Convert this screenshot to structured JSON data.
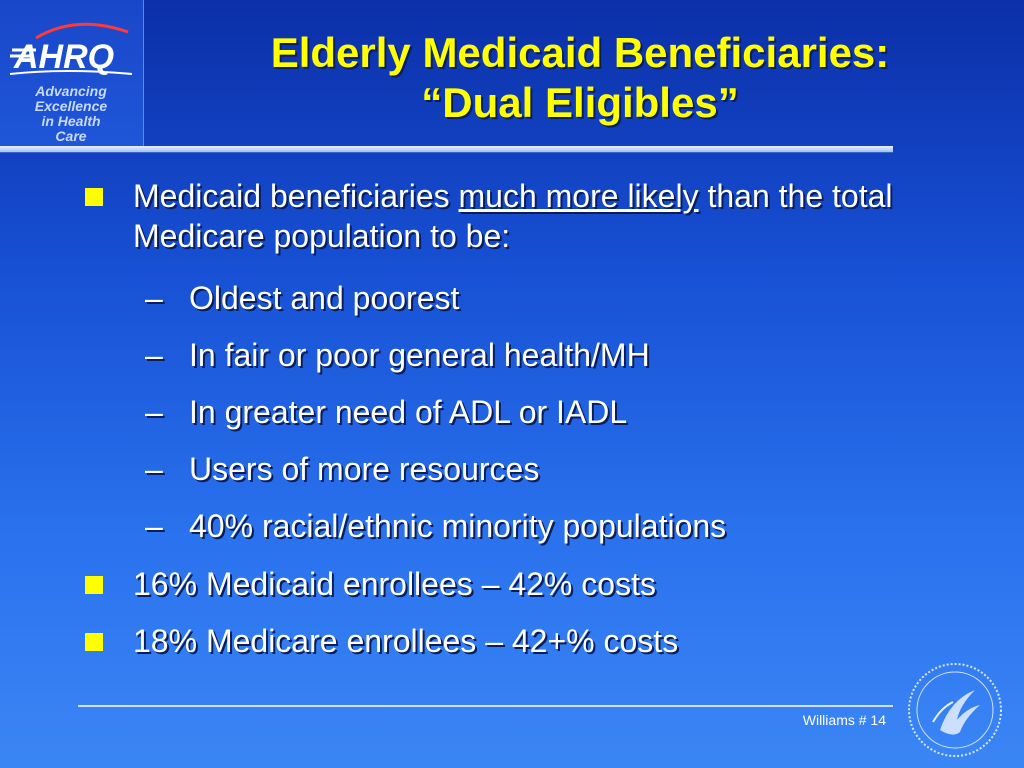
{
  "logo": {
    "text": "AHRQ",
    "tagline": [
      "Advancing",
      "Excellence",
      "in Health",
      "Care"
    ]
  },
  "title": {
    "line1": "Elderly Medicaid Beneficiaries:",
    "line2": "“Dual Eligibles”"
  },
  "bullets": {
    "b1_part1": "Medicaid beneficiaries ",
    "b1_underline": "much more likely",
    "b1_part2": " than the total Medicare population to be:",
    "sub": [
      "Oldest and poorest",
      "In fair or poor general health/MH",
      "In greater need of ADL or IADL",
      "Users of more resources",
      "40% racial/ethnic minority populations"
    ],
    "b2": "16% Medicaid enrollees – 42% costs",
    "b3": "18% Medicare enrollees – 42+% costs"
  },
  "dash_glyph": "–",
  "footer": {
    "slide_label": "Williams # 14"
  },
  "colors": {
    "title": "#ffff00",
    "bullet_square": "#ffff00",
    "background_top": "#0b2fa8",
    "background_bottom": "#3b86f5"
  },
  "icons": {
    "logo": "ahrq-logo-icon",
    "seal": "hhs-seal-icon"
  }
}
